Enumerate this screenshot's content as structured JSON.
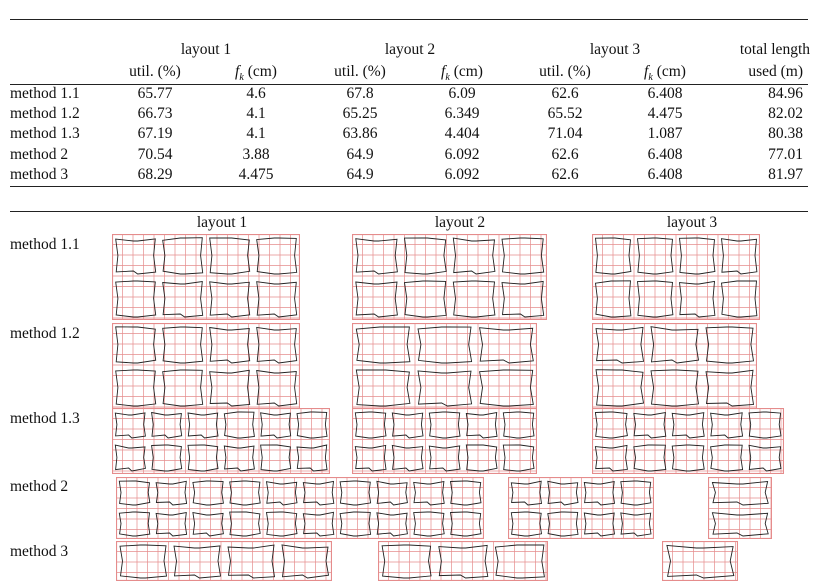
{
  "table": {
    "header": {
      "layout_1": "layout 1",
      "layout_2": "layout 2",
      "layout_3": "layout 3",
      "total_length_line1": "total length",
      "total_length_line2": "used (m)",
      "util": "util. (%)",
      "fk_symbol": "f",
      "fk_sub": "k",
      "fk_unit": " (cm)"
    },
    "rows": [
      {
        "method": "method 1.1",
        "u1": "65.77",
        "f1": "4.6",
        "u2": "67.8",
        "f2": "6.09",
        "u3": "62.6",
        "f3": "6.408",
        "total": "84.96"
      },
      {
        "method": "method 1.2",
        "u1": "66.73",
        "f1": "4.1",
        "u2": "65.25",
        "f2": "6.349",
        "u3": "65.52",
        "f3": "4.475",
        "total": "82.02"
      },
      {
        "method": "method 1.3",
        "u1": "67.19",
        "f1": "4.1",
        "u2": "63.86",
        "f2": "4.404",
        "u3": "71.04",
        "f3": "1.087",
        "total": "80.38"
      },
      {
        "method": "method 2",
        "u1": "70.54",
        "f1": "3.88",
        "u2": "64.9",
        "f2": "6.092",
        "u3": "62.6",
        "f3": "6.408",
        "total": "77.01"
      },
      {
        "method": "method 3",
        "u1": "68.29",
        "f1": "4.475",
        "u2": "64.9",
        "f2": "6.092",
        "u3": "62.6",
        "f3": "6.408",
        "total": "81.97"
      }
    ]
  },
  "figure": {
    "col_headers": [
      "layout 1",
      "layout 2",
      "layout 3"
    ],
    "row_labels": [
      "method 1.1",
      "method 1.2",
      "method 1.3",
      "method 2",
      "method 3"
    ],
    "grid_color": "#e58c8c",
    "piece_color": "#222222"
  }
}
